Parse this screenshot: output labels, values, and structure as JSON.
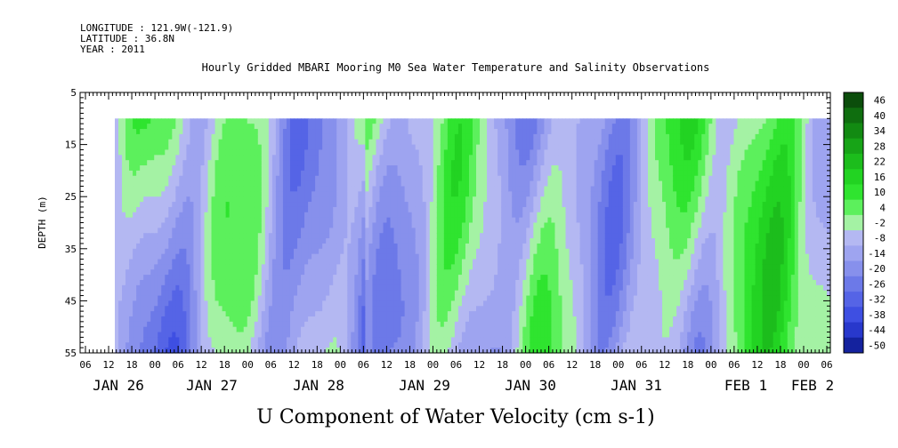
{
  "header": {
    "longitude": "LONGITUDE : 121.9W(-121.9)",
    "latitude": "LATITUDE : 36.8N",
    "year": "YEAR : 2011"
  },
  "chart_data": {
    "type": "heatmap",
    "title": "Hourly Gridded MBARI Mooring M0 Sea Water Temperature and Salinity Observations",
    "xlabel": "U Component of Water Velocity (cm s-1)",
    "ylabel": "DEPTH (m)",
    "ylim": [
      55,
      5
    ],
    "y_ticks": [
      "5",
      "15",
      "25",
      "35",
      "45",
      "55"
    ],
    "x_hour_ticks": [
      "06",
      "12",
      "18",
      "00",
      "06",
      "12",
      "18",
      "00",
      "06",
      "12",
      "18",
      "00",
      "06",
      "12",
      "18",
      "00",
      "06",
      "12",
      "18",
      "00",
      "06",
      "12",
      "18",
      "00",
      "06",
      "12",
      "18",
      "00",
      "06",
      "12",
      "18",
      "00",
      "06"
    ],
    "x_date_labels": [
      "JAN 26",
      "JAN 27",
      "JAN 28",
      "JAN 29",
      "JAN 30",
      "JAN 31",
      "FEB  1",
      "FEB  2"
    ],
    "data_depth_range_m": [
      10,
      55
    ],
    "colorbar_levels": [
      "46",
      "40",
      "34",
      "28",
      "22",
      "16",
      "10",
      "4",
      "-2",
      "-8",
      "-14",
      "-20",
      "-26",
      "-32",
      "-38",
      "-44",
      "-50"
    ],
    "colors": {
      "strong_negative": "#0a0a8a",
      "negative": "#3d5ae8",
      "weak_negative": "#a8aef2",
      "weak_positive": "#a8f2a8",
      "positive": "#32e632",
      "strong_positive": "#0a5a0a"
    },
    "time_series_u_by_day": [
      {
        "day": "JAN 26",
        "pattern": "-8 surface to -20 at depth"
      },
      {
        "day": "JAN 27",
        "pattern": "-14 to -26"
      },
      {
        "day": "JAN 28",
        "pattern": "-20 to -26 with +10 bands"
      },
      {
        "day": "JAN 29",
        "pattern": "+10 to -14 alternating"
      },
      {
        "day": "JAN 30",
        "pattern": "+16 to -14 alternating"
      },
      {
        "day": "JAN 31",
        "pattern": "+16 to -20 alternating"
      },
      {
        "day": "FEB  1",
        "pattern": "+16 to -14 alternating"
      },
      {
        "day": "FEB  2",
        "pattern": "+16 near end"
      }
    ]
  }
}
